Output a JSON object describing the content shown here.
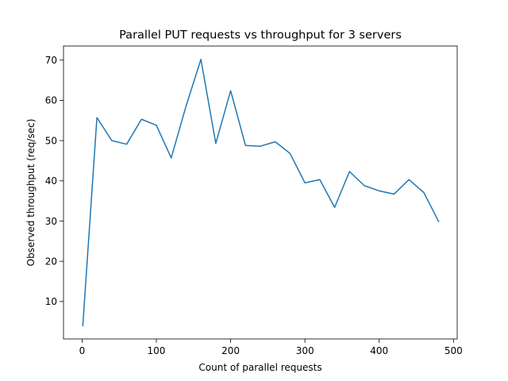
{
  "chart_data": {
    "type": "line",
    "title": "Parallel PUT requests vs throughput for 3 servers",
    "xlabel": "Count of parallel requests",
    "ylabel": "Observed throughput (req/sec)",
    "xlim": [
      -25,
      505
    ],
    "ylim": [
      0.7,
      73.5
    ],
    "xticks": [
      0,
      100,
      200,
      300,
      400,
      500
    ],
    "yticks": [
      10,
      20,
      30,
      40,
      50,
      60,
      70
    ],
    "grid": false,
    "series": [
      {
        "color": "#1f77b4",
        "x": [
          1,
          20,
          40,
          60,
          80,
          100,
          120,
          140,
          160,
          180,
          200,
          220,
          240,
          260,
          280,
          300,
          320,
          340,
          360,
          380,
          400,
          420,
          440,
          460,
          480
        ],
        "y": [
          4,
          55.7,
          50,
          49.1,
          55.3,
          53.8,
          45.7,
          58.6,
          70.2,
          49.3,
          62.4,
          48.8,
          48.6,
          49.7,
          46.8,
          39.5,
          40.3,
          33.4,
          42.3,
          38.8,
          37.5,
          36.7,
          40.3,
          37.1,
          29.9
        ]
      }
    ]
  }
}
